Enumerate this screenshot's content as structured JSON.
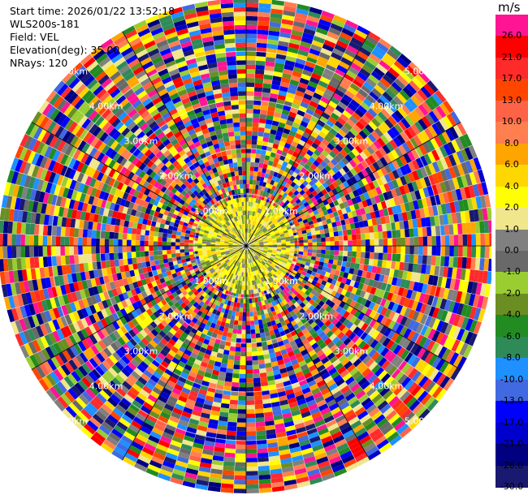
{
  "header": {
    "start_time": "Start time: 2026/01/22 13:52:18",
    "device": "WLS200s-181",
    "field": "Field: VEL",
    "elevation": "Elevation(deg): 35.00",
    "nrays": "NRays: 120"
  },
  "colorbar": {
    "unit": "m/s",
    "levels": [
      {
        "label": "26.0",
        "color": "#ff1493"
      },
      {
        "label": "21.0",
        "color": "#ff0000"
      },
      {
        "label": "17.0",
        "color": "#ff2a2a"
      },
      {
        "label": "13.0",
        "color": "#ff4500"
      },
      {
        "label": "10.0",
        "color": "#ff6347"
      },
      {
        "label": "8.0",
        "color": "#ff7f50"
      },
      {
        "label": "6.0",
        "color": "#ffa500"
      },
      {
        "label": "4.0",
        "color": "#ffd700"
      },
      {
        "label": "2.0",
        "color": "#ffff00"
      },
      {
        "label": "1.0",
        "color": "#f0e68c"
      },
      {
        "label": "0.0",
        "color": "#808080"
      },
      {
        "label": "-1.0",
        "color": "#696969"
      },
      {
        "label": "-2.0",
        "color": "#9acd32"
      },
      {
        "label": "-4.0",
        "color": "#6b8e23"
      },
      {
        "label": "-6.0",
        "color": "#228b22"
      },
      {
        "label": "-8.0",
        "color": "#2e8b57"
      },
      {
        "label": "-10.0",
        "color": "#1e90ff"
      },
      {
        "label": "-13.0",
        "color": "#4169e1"
      },
      {
        "label": "-17.0",
        "color": "#0000ff"
      },
      {
        "label": "-21.0",
        "color": "#0000cd"
      },
      {
        "label": "-26.0",
        "color": "#000080"
      },
      {
        "label": "-30.0",
        "color": "#191970"
      }
    ]
  },
  "range_labels": [
    "1.00km",
    "2.00km",
    "3.00km",
    "4.00km",
    "5.00km"
  ]
}
